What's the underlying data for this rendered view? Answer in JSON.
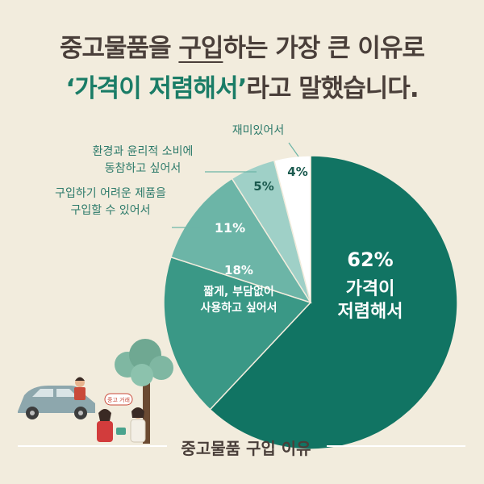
{
  "title": {
    "line1_parts": [
      "중고물품을 ",
      "구입",
      "하는 가장 큰 이유로"
    ],
    "line2_parts": [
      "‘가격이 저렴해서’",
      "라고 말했습니다."
    ]
  },
  "chart_data": {
    "type": "pie",
    "title": "",
    "slices": [
      {
        "value": 62,
        "label": "62%",
        "category": "가격이\n저렴해서",
        "color": "#117463"
      },
      {
        "value": 18,
        "label": "18%",
        "category": "짧게, 부담없이\n사용하고 싶어서",
        "color": "#3a9886"
      },
      {
        "value": 11,
        "label": "11%",
        "category": "구입하기 어려운 제품을\n구입할 수 있어서",
        "color": "#6cb5a7"
      },
      {
        "value": 5,
        "label": "5%",
        "category": "환경과 윤리적 소비에\n동참하고 싶어서",
        "color": "#9fd0c7"
      },
      {
        "value": 4,
        "label": "4%",
        "category": "재미있어서",
        "color": "#ffffff"
      }
    ],
    "start": "12 o'clock",
    "direction": "clockwise"
  },
  "caption": "중고물품 구입 이유",
  "illustration": {
    "tree_sign_text": "중고 거래"
  },
  "colors": {
    "background": "#f2ecdd",
    "title_text": "#4a3f3a",
    "accent": "#1a7c66"
  }
}
